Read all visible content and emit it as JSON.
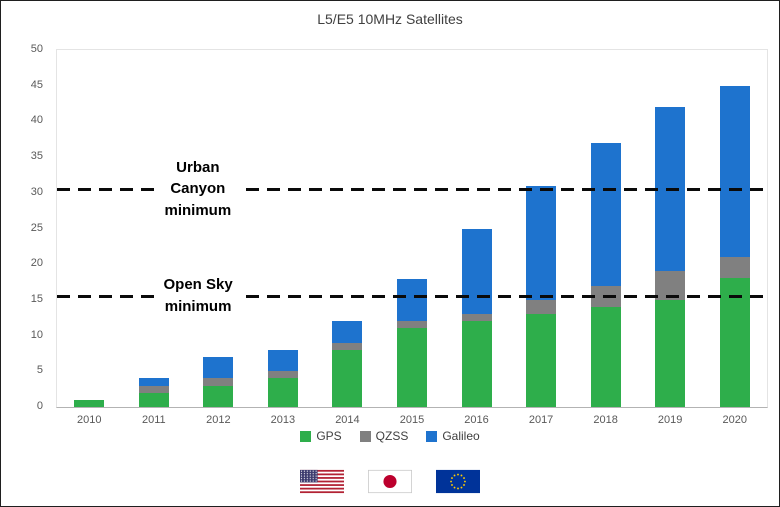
{
  "chart_data": {
    "type": "bar",
    "stacked": true,
    "title": "L5/E5 10MHz Satellites",
    "categories": [
      "2010",
      "2011",
      "2012",
      "2013",
      "2014",
      "2015",
      "2016",
      "2017",
      "2018",
      "2019",
      "2020"
    ],
    "series": [
      {
        "name": "GPS",
        "color": "#2eae4b",
        "values": [
          1,
          2,
          3,
          4,
          8,
          11,
          12,
          13,
          14,
          15,
          18
        ]
      },
      {
        "name": "QZSS",
        "color": "#808080",
        "values": [
          0,
          1,
          1,
          1,
          1,
          1,
          1,
          2,
          3,
          4,
          3
        ]
      },
      {
        "name": "Galileo",
        "color": "#1e73ce",
        "values": [
          0,
          1,
          3,
          3,
          3,
          6,
          12,
          16,
          20,
          23,
          24
        ]
      }
    ],
    "totals": [
      1,
      4,
      7,
      8,
      12,
      18,
      25,
      31,
      37,
      42,
      45
    ],
    "ylim": [
      0,
      50
    ],
    "ytick_step": 5,
    "grid": false,
    "legend_position": "bottom",
    "annotations": [
      {
        "label": "Urban Canyon minimum",
        "lines": [
          "Urban",
          "Canyon",
          "minimum"
        ],
        "value": 30.5,
        "style": "dashed",
        "color": "#000000"
      },
      {
        "label": "Open Sky minimum",
        "lines": [
          "Open Sky",
          "minimum"
        ],
        "value": 15.5,
        "style": "dashed",
        "color": "#000000"
      }
    ]
  },
  "flags": {
    "items": [
      "us-flag-icon",
      "japan-flag-icon",
      "eu-flag-icon"
    ]
  }
}
